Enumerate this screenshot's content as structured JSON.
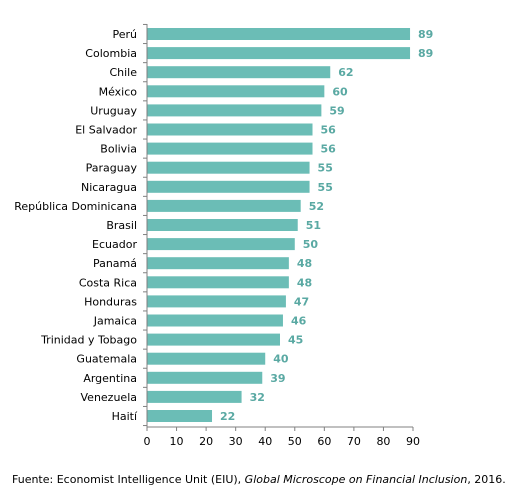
{
  "chart_data": {
    "type": "bar",
    "orientation": "horizontal",
    "categories": [
      "Perú",
      "Colombia",
      "Chile",
      "México",
      "Uruguay",
      "El Salvador",
      "Bolivia",
      "Paraguay",
      "Nicaragua",
      "República Dominicana",
      "Brasil",
      "Ecuador",
      "Panamá",
      "Costa Rica",
      "Honduras",
      "Jamaica",
      "Trinidad y Tobago",
      "Guatemala",
      "Argentina",
      "Venezuela",
      "Haití"
    ],
    "values": [
      89,
      89,
      62,
      60,
      59,
      56,
      56,
      55,
      55,
      52,
      51,
      50,
      48,
      48,
      47,
      46,
      45,
      40,
      39,
      32,
      22
    ],
    "xlim": [
      0,
      90
    ],
    "xticks": [
      0,
      10,
      20,
      30,
      40,
      50,
      60,
      70,
      80,
      90
    ],
    "title": "",
    "xlabel": "",
    "ylabel": "",
    "grid": false,
    "bar_color": "#6bbdb6",
    "value_label_color": "#5aa9a3"
  },
  "source": {
    "prefix": "Fuente: Economist Intelligence Unit (EIU), ",
    "italic": "Global Microscope on Financial Inclusion",
    "suffix": ", 2016."
  }
}
